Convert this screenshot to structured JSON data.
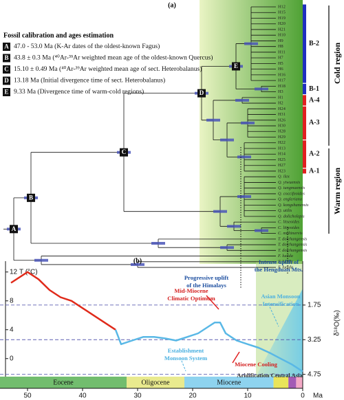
{
  "panel_a": "(a)",
  "panel_b": "(b)",
  "calibration_title": "Fossil calibration and ages estimation",
  "calibrations": [
    {
      "letter": "A",
      "text": "47.0 - 53.0 Ma (K-Ar dates of the oldest-known Fagus)"
    },
    {
      "letter": "B",
      "text": "43.8 ± 0.3 Ma (⁴⁰Ar-³⁹Ar weighted mean age of the oldest-known Quercus)"
    },
    {
      "letter": "C",
      "text": "15.10 ± 0.49 Ma (⁴⁰Ar-³⁹Ar weighted mean age of sect. Heterobalanus)"
    },
    {
      "letter": "D",
      "text": "13.18 Ma (Initial divergence time of sect. Heterobalanus)"
    },
    {
      "letter": "E",
      "text": "9.33 Ma (Divergence time of warm-cold regions)"
    }
  ],
  "tips": [
    "H12",
    "H15",
    "H19",
    "H20",
    "H21",
    "H10",
    "H9",
    "H8",
    "H11",
    "H7",
    "H5",
    "H6",
    "H16",
    "H17",
    "H18",
    "H3",
    "H1",
    "H2",
    "H24",
    "H31",
    "H26",
    "H30",
    "H28",
    "H29",
    "H22",
    "H13",
    "H14",
    "H25",
    "H27",
    "H23",
    "Q. ilex",
    "Q. yiwuensis",
    "Q. tungmaensis",
    "Q. coccifeoides",
    "Q. engleriana",
    "Q. kongshanensis",
    "Q. utilis",
    "Q. dolicholepis",
    "C. litseoides",
    "C. litseoides",
    "C. multinervis",
    "T. doichangensis",
    "T. doichangensis",
    "T. doichangensis",
    "F. lucida",
    "F. lucida",
    "F. lucida"
  ],
  "clades": [
    {
      "label": "B-2",
      "color": "#1f2fbf"
    },
    {
      "label": "B-1",
      "color": "#1f2fbf"
    },
    {
      "label": "A-4",
      "color": "#e02020"
    },
    {
      "label": "A-3",
      "color": "#e02020"
    },
    {
      "label": "A-2",
      "color": "#e02020"
    },
    {
      "label": "A-1",
      "color": "#e02020"
    }
  ],
  "cold_region": "Cold region",
  "warm_region": "Warm region",
  "chart_data": {
    "type": "line",
    "x": [
      53,
      50,
      48,
      46,
      44,
      42,
      40,
      38,
      36,
      34,
      33,
      31,
      29,
      27,
      25,
      23,
      21,
      19,
      17,
      16,
      15,
      14,
      13,
      12,
      10,
      8,
      6,
      4,
      2,
      0
    ],
    "series": [
      {
        "color": "#e02a1a",
        "values": [
          10.5,
          12,
          11,
          9.5,
          8.5,
          8,
          7,
          6,
          5,
          4,
          null,
          null,
          null,
          null,
          null,
          null,
          null,
          null,
          null,
          null,
          null,
          null,
          null,
          null,
          null,
          null,
          null,
          null,
          null,
          null
        ]
      },
      {
        "color": "#59b8e6",
        "values": [
          null,
          null,
          null,
          null,
          null,
          null,
          null,
          null,
          null,
          4,
          2,
          2.5,
          3,
          3,
          2.8,
          2.5,
          3,
          3.5,
          4.5,
          5,
          5,
          3.5,
          3,
          2.5,
          2,
          1.5,
          0.8,
          0,
          -0.8,
          -1.8
        ]
      }
    ],
    "xlim": [
      55,
      0
    ],
    "xticks": [
      50,
      40,
      30,
      20,
      10,
      0
    ],
    "xlabel": "Ma",
    "ylim": [
      -2.5,
      13.5
    ],
    "yticks": [
      0,
      4,
      8,
      12
    ],
    "ylabel": "T (°C)",
    "y2lim": [
      -0.15,
      4.85
    ],
    "y2_inverted": true,
    "y2ticks": [
      1.75,
      3.25,
      4.75
    ],
    "y2label": "δ¹⁸O(‰)",
    "y2grid": true,
    "epochs": [
      {
        "name": "Eocene",
        "start": 55,
        "end": 32,
        "color": "#72bd6e"
      },
      {
        "name": "Oligocene",
        "start": 32,
        "end": 21.5,
        "color": "#e9ea8e"
      },
      {
        "name": "Miocene",
        "start": 21.5,
        "end": 5.3,
        "color": "#8ed3ef"
      },
      {
        "start": 5.3,
        "end": 2.6,
        "color": "#e9e45a"
      },
      {
        "start": 2.6,
        "end": 1.2,
        "color": "#a35bb5"
      },
      {
        "start": 1.2,
        "end": 0,
        "color": "#f3a9c6"
      }
    ],
    "annotations": [
      {
        "lines": [
          "Mid-Miocene",
          "Climatic Optimum"
        ],
        "color": "#d42020"
      },
      {
        "lines": [
          "Progressive uplift",
          "of the Himalays"
        ],
        "color": "#1d4fa0"
      },
      {
        "lines": [
          "Intense uplift of",
          "the Hengduan Mts."
        ],
        "color": "#1d4fa0"
      },
      {
        "lines": [
          "Asian Monsoon",
          "Intensification"
        ],
        "color": "#4ab0e0"
      },
      {
        "lines": [
          "Establishment",
          "Monsoon System"
        ],
        "color": "#4ab0e0"
      },
      {
        "lines": [
          "Miocene Cooling"
        ],
        "color": "#d42020"
      },
      {
        "lines": [
          "Aridification Central Asia"
        ],
        "color": "#333"
      }
    ]
  }
}
